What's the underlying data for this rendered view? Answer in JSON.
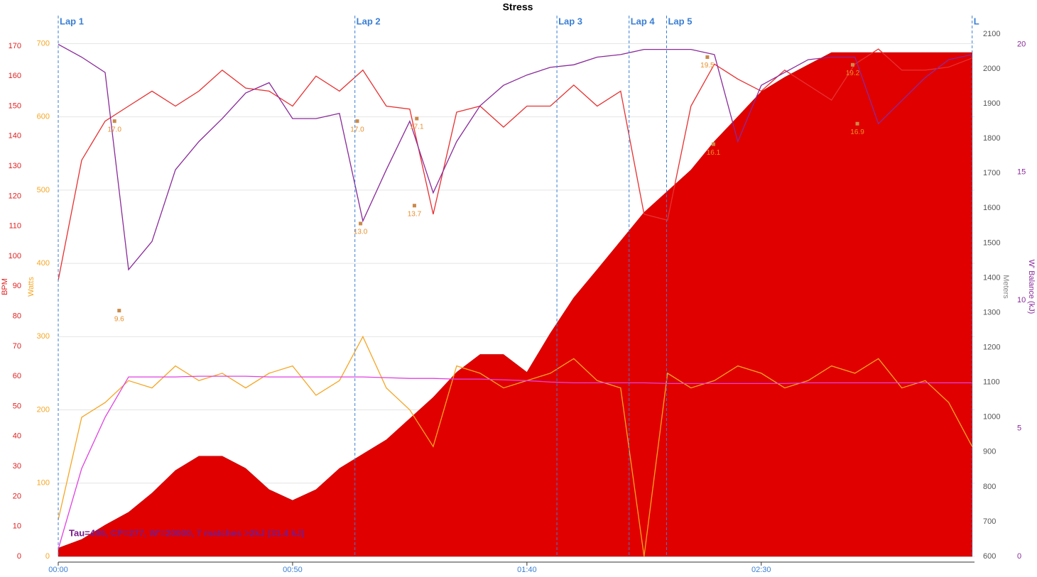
{
  "chart_data": {
    "type": "line",
    "title": "Stress",
    "annotation": "Tau=496, CP=277, W'=20000, 7 matches >2kJ (31.4 kJ)",
    "x": [
      0,
      5,
      10,
      15,
      20,
      25,
      30,
      35,
      40,
      45,
      50,
      55,
      60,
      65,
      70,
      75,
      80,
      85,
      90,
      95,
      100,
      105,
      110,
      115,
      120,
      125,
      130,
      135,
      140,
      145,
      150,
      155,
      160,
      165,
      170,
      175,
      180,
      185,
      190,
      195
    ],
    "xlim": [
      0,
      195.5
    ],
    "xticks": [
      {
        "value": 0,
        "label": "00:00"
      },
      {
        "value": 50,
        "label": "00:50"
      },
      {
        "value": 100,
        "label": "01:40"
      },
      {
        "value": 150,
        "label": "02:30"
      }
    ],
    "y_label": "Watts",
    "ylim": [
      0,
      713
    ],
    "yticks": [
      0,
      100,
      200,
      300,
      400,
      500,
      600,
      700
    ],
    "grid": true,
    "bpm_label": "BPM",
    "bpm_lim": [
      0,
      174
    ],
    "bpm_ticks": [
      0,
      10,
      20,
      30,
      40,
      50,
      60,
      70,
      80,
      90,
      100,
      110,
      120,
      130,
      140,
      150,
      160,
      170
    ],
    "meters_label": "Meters",
    "meters_lim": [
      600,
      2100
    ],
    "meters_ticks": [
      600,
      700,
      800,
      900,
      1000,
      1100,
      1200,
      1300,
      1400,
      1500,
      1600,
      1700,
      1800,
      1900,
      2000,
      2100
    ],
    "wbal_label": "W' Balance (kJ)",
    "wbal_lim": [
      0,
      20.4
    ],
    "wbal_ticks": [
      0,
      5,
      10,
      15,
      20
    ],
    "laps": [
      {
        "x": 0,
        "label": "Lap 1"
      },
      {
        "x": 63.3,
        "label": "Lap 2"
      },
      {
        "x": 106.4,
        "label": "Lap 3"
      },
      {
        "x": 121.8,
        "label": "Lap 4"
      },
      {
        "x": 129.8,
        "label": "Lap 5"
      },
      {
        "x": 195,
        "label": "L"
      }
    ],
    "series": [
      {
        "axis": "meters",
        "kind": "area",
        "color": "#e00000",
        "values": [
          624,
          649,
          690,
          727,
          782,
          847,
          888,
          888,
          853,
          792,
          761,
          792,
          853,
          894,
          935,
          996,
          1057,
          1129,
          1180,
          1180,
          1129,
          1241,
          1343,
          1424,
          1506,
          1588,
          1649,
          1710,
          1792,
          1863,
          1935,
          1976,
          2012,
          2047,
          2047,
          2047,
          2047,
          2047,
          2047,
          2047
        ]
      },
      {
        "axis": "watts",
        "kind": "line",
        "color": "#f5a623",
        "values": [
          50,
          190,
          210,
          240,
          230,
          260,
          240,
          250,
          230,
          250,
          260,
          220,
          240,
          300,
          230,
          200,
          150,
          260,
          250,
          230,
          240,
          250,
          270,
          240,
          230,
          0,
          250,
          230,
          240,
          260,
          250,
          230,
          240,
          260,
          250,
          270,
          230,
          240,
          210,
          150
        ]
      },
      {
        "axis": "watts",
        "kind": "line",
        "color": "#e040e0",
        "values": [
          10,
          120,
          190,
          245,
          245,
          245,
          246,
          246,
          246,
          245,
          245,
          245,
          245,
          245,
          244,
          243,
          243,
          242,
          242,
          241,
          240,
          238,
          237,
          237,
          237,
          237,
          236,
          236,
          236,
          236,
          236,
          236,
          237,
          237,
          237,
          237,
          237,
          237,
          237,
          237
        ]
      },
      {
        "axis": "bpm",
        "kind": "line",
        "color": "#e83030",
        "values": [
          92,
          132,
          145,
          150,
          155,
          150,
          155,
          162,
          156,
          155,
          150,
          160,
          155,
          162,
          150,
          149,
          114,
          148,
          150,
          143,
          150,
          150,
          157,
          150,
          155,
          114,
          112,
          150,
          164,
          159,
          155,
          162,
          157,
          152,
          164,
          169,
          162,
          162,
          163,
          166
        ]
      },
      {
        "axis": "wbal",
        "kind": "line",
        "color": "#8a2a9a",
        "values": [
          20,
          19.5,
          18.9,
          11.2,
          12.3,
          15.1,
          16.2,
          17.1,
          18.1,
          18.5,
          17.1,
          17.1,
          17.3,
          13.1,
          15.1,
          17,
          14.2,
          16.2,
          17.6,
          18.4,
          18.8,
          19.1,
          19.2,
          19.5,
          19.6,
          19.8,
          19.8,
          19.8,
          19.6,
          16.2,
          18.4,
          18.9,
          19.4,
          19.5,
          19.5,
          16.9,
          17.8,
          18.7,
          19.4,
          19.6
        ]
      }
    ],
    "match_labels": [
      {
        "x": 12,
        "value": 17,
        "label": "17.0"
      },
      {
        "x": 13,
        "value": 9.6,
        "label": "9.6"
      },
      {
        "x": 63.8,
        "value": 17,
        "label": "17.0"
      },
      {
        "x": 64.5,
        "value": 13,
        "label": "13.0"
      },
      {
        "x": 76.5,
        "value": 17.1,
        "label": "17.1"
      },
      {
        "x": 76,
        "value": 13.7,
        "label": "13.7"
      },
      {
        "x": 138.5,
        "value": 19.5,
        "label": "19.5"
      },
      {
        "x": 139.8,
        "value": 16.1,
        "label": "16.1"
      },
      {
        "x": 169.5,
        "value": 19.2,
        "label": "19.2"
      },
      {
        "x": 170.5,
        "value": 16.9,
        "label": "16.9"
      }
    ]
  }
}
